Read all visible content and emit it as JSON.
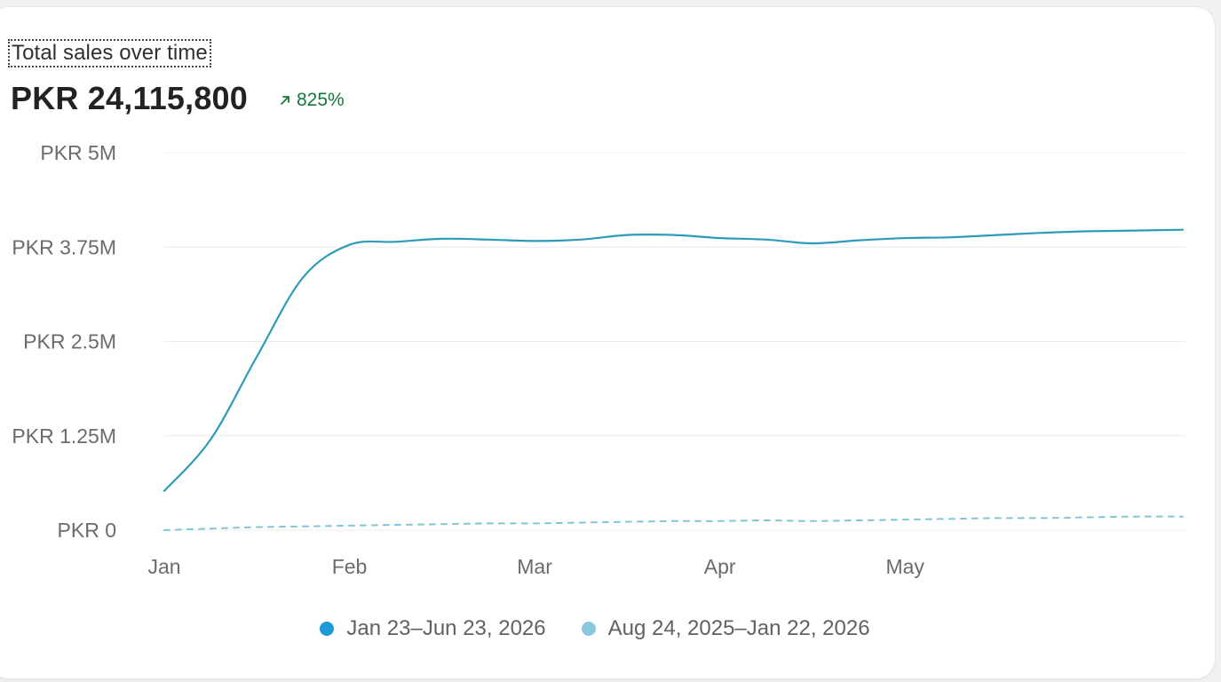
{
  "card": {
    "title": "Total sales over time",
    "total": "PKR 24,115,800",
    "delta": "825%",
    "delta_direction": "up",
    "delta_color": "#137a3b"
  },
  "chart_data": {
    "type": "line",
    "ylim": [
      0,
      5000000
    ],
    "ytick_values": [
      0,
      1250000,
      2500000,
      3750000,
      5000000
    ],
    "ytick_labels": [
      "PKR 0",
      "PKR 1.25M",
      "PKR 2.5M",
      "PKR 3.75M",
      "PKR 5M"
    ],
    "x": [
      "Jan 23",
      "Jan 30",
      "Feb 6",
      "Feb 13",
      "Feb 20",
      "Feb 27",
      "Mar 6",
      "Mar 13",
      "Mar 20",
      "Mar 27",
      "Apr 3",
      "Apr 10",
      "Apr 17",
      "Apr 24",
      "May 1",
      "May 8",
      "May 15",
      "May 22",
      "May 29",
      "Jun 5",
      "Jun 12",
      "Jun 19",
      "Jun 23"
    ],
    "xtick_labels": [
      "Jan",
      "Feb",
      "Mar",
      "Apr",
      "May"
    ],
    "xtick_positions": [
      "Jan 23",
      "Feb 20",
      "Mar 20",
      "Apr 17",
      "May 15"
    ],
    "grid": true,
    "legend_position": "bottom",
    "series": [
      {
        "name": "Jan 23–Jun 23, 2026",
        "color": "#2e9bb8",
        "style": "solid",
        "values": [
          520000,
          1200000,
          2300000,
          3350000,
          3780000,
          3820000,
          3860000,
          3850000,
          3830000,
          3850000,
          3910000,
          3910000,
          3870000,
          3850000,
          3800000,
          3840000,
          3870000,
          3880000,
          3910000,
          3940000,
          3960000,
          3970000,
          3980000
        ]
      },
      {
        "name": "Aug 24, 2025–Jan 22, 2026",
        "color": "#7fc6d6",
        "style": "dashed",
        "values": [
          0,
          20000,
          40000,
          50000,
          60000,
          70000,
          80000,
          90000,
          90000,
          100000,
          110000,
          120000,
          120000,
          130000,
          120000,
          130000,
          140000,
          150000,
          160000,
          160000,
          170000,
          180000,
          180000
        ]
      }
    ],
    "legend_markers": [
      "#1e9bd7",
      "#8cc8dd"
    ]
  }
}
